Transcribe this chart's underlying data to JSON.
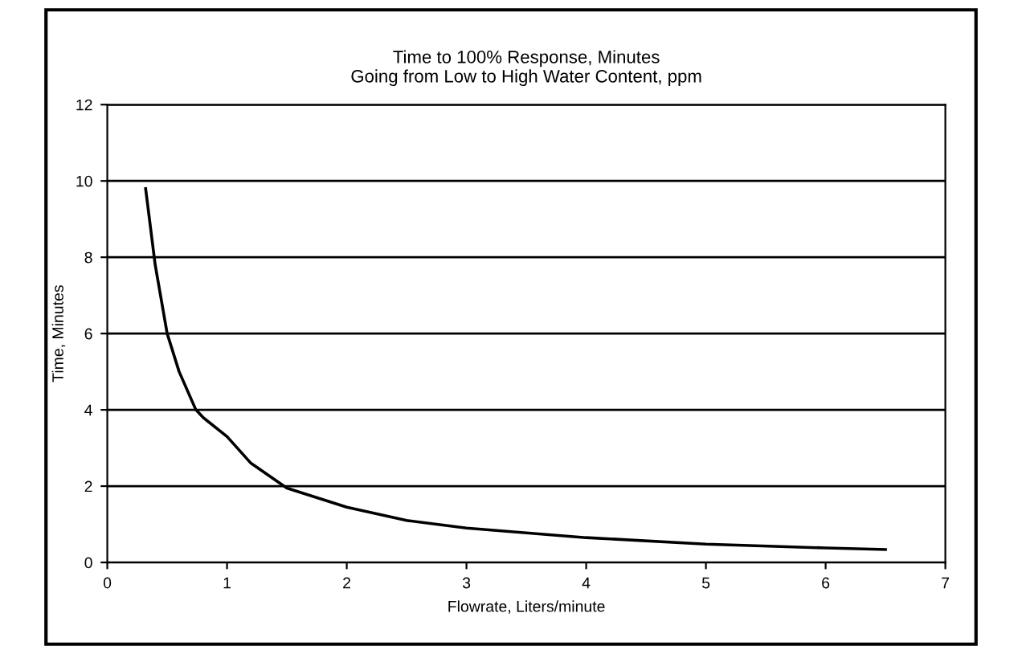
{
  "chart_data": {
    "type": "line",
    "title": "Time to 100% Response, Minutes\nGoing from Low to High Water Content, ppm",
    "xlabel": "Flowrate, Liters/minute",
    "ylabel": "Time, Minutes",
    "series": [
      {
        "color": "#000000",
        "x": [
          0.32,
          0.4,
          0.5,
          0.6,
          0.74,
          0.8,
          1.0,
          1.2,
          1.5,
          2.0,
          2.5,
          3.0,
          4.0,
          5.0,
          6.0,
          6.5
        ],
        "values": [
          9.8,
          7.8,
          6.0,
          5.0,
          4.0,
          3.8,
          3.3,
          2.6,
          1.95,
          1.45,
          1.1,
          0.9,
          0.65,
          0.48,
          0.38,
          0.34
        ]
      }
    ],
    "xlim": [
      0,
      7
    ],
    "xticks": [
      0,
      1,
      2,
      3,
      4,
      5,
      6,
      7
    ],
    "ylim": [
      0,
      12
    ],
    "yticks": [
      0,
      2,
      4,
      6,
      8,
      10,
      12
    ],
    "grid": "y",
    "legend": false,
    "marker": "none",
    "line_style": "solid"
  }
}
